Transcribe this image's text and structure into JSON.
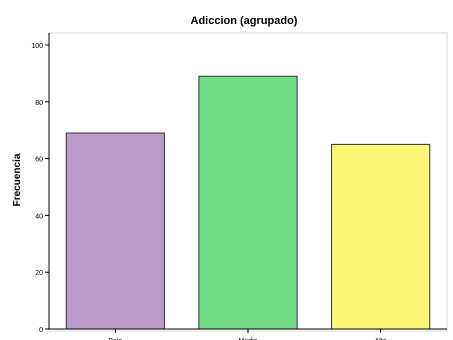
{
  "chart_data": {
    "type": "bar",
    "title": "Adiccion (agrupado)",
    "ylabel": "Frecuencia",
    "xlabel": "",
    "categories": [
      "Bajo",
      "Medio",
      "Alto"
    ],
    "values": [
      69,
      89,
      65
    ],
    "colors": [
      "#b99aca",
      "#72db86",
      "#fbf878"
    ],
    "ylim": [
      0,
      100
    ],
    "yticks": [
      0,
      20,
      40,
      60,
      80,
      100
    ],
    "grid": false,
    "legend": "none"
  }
}
